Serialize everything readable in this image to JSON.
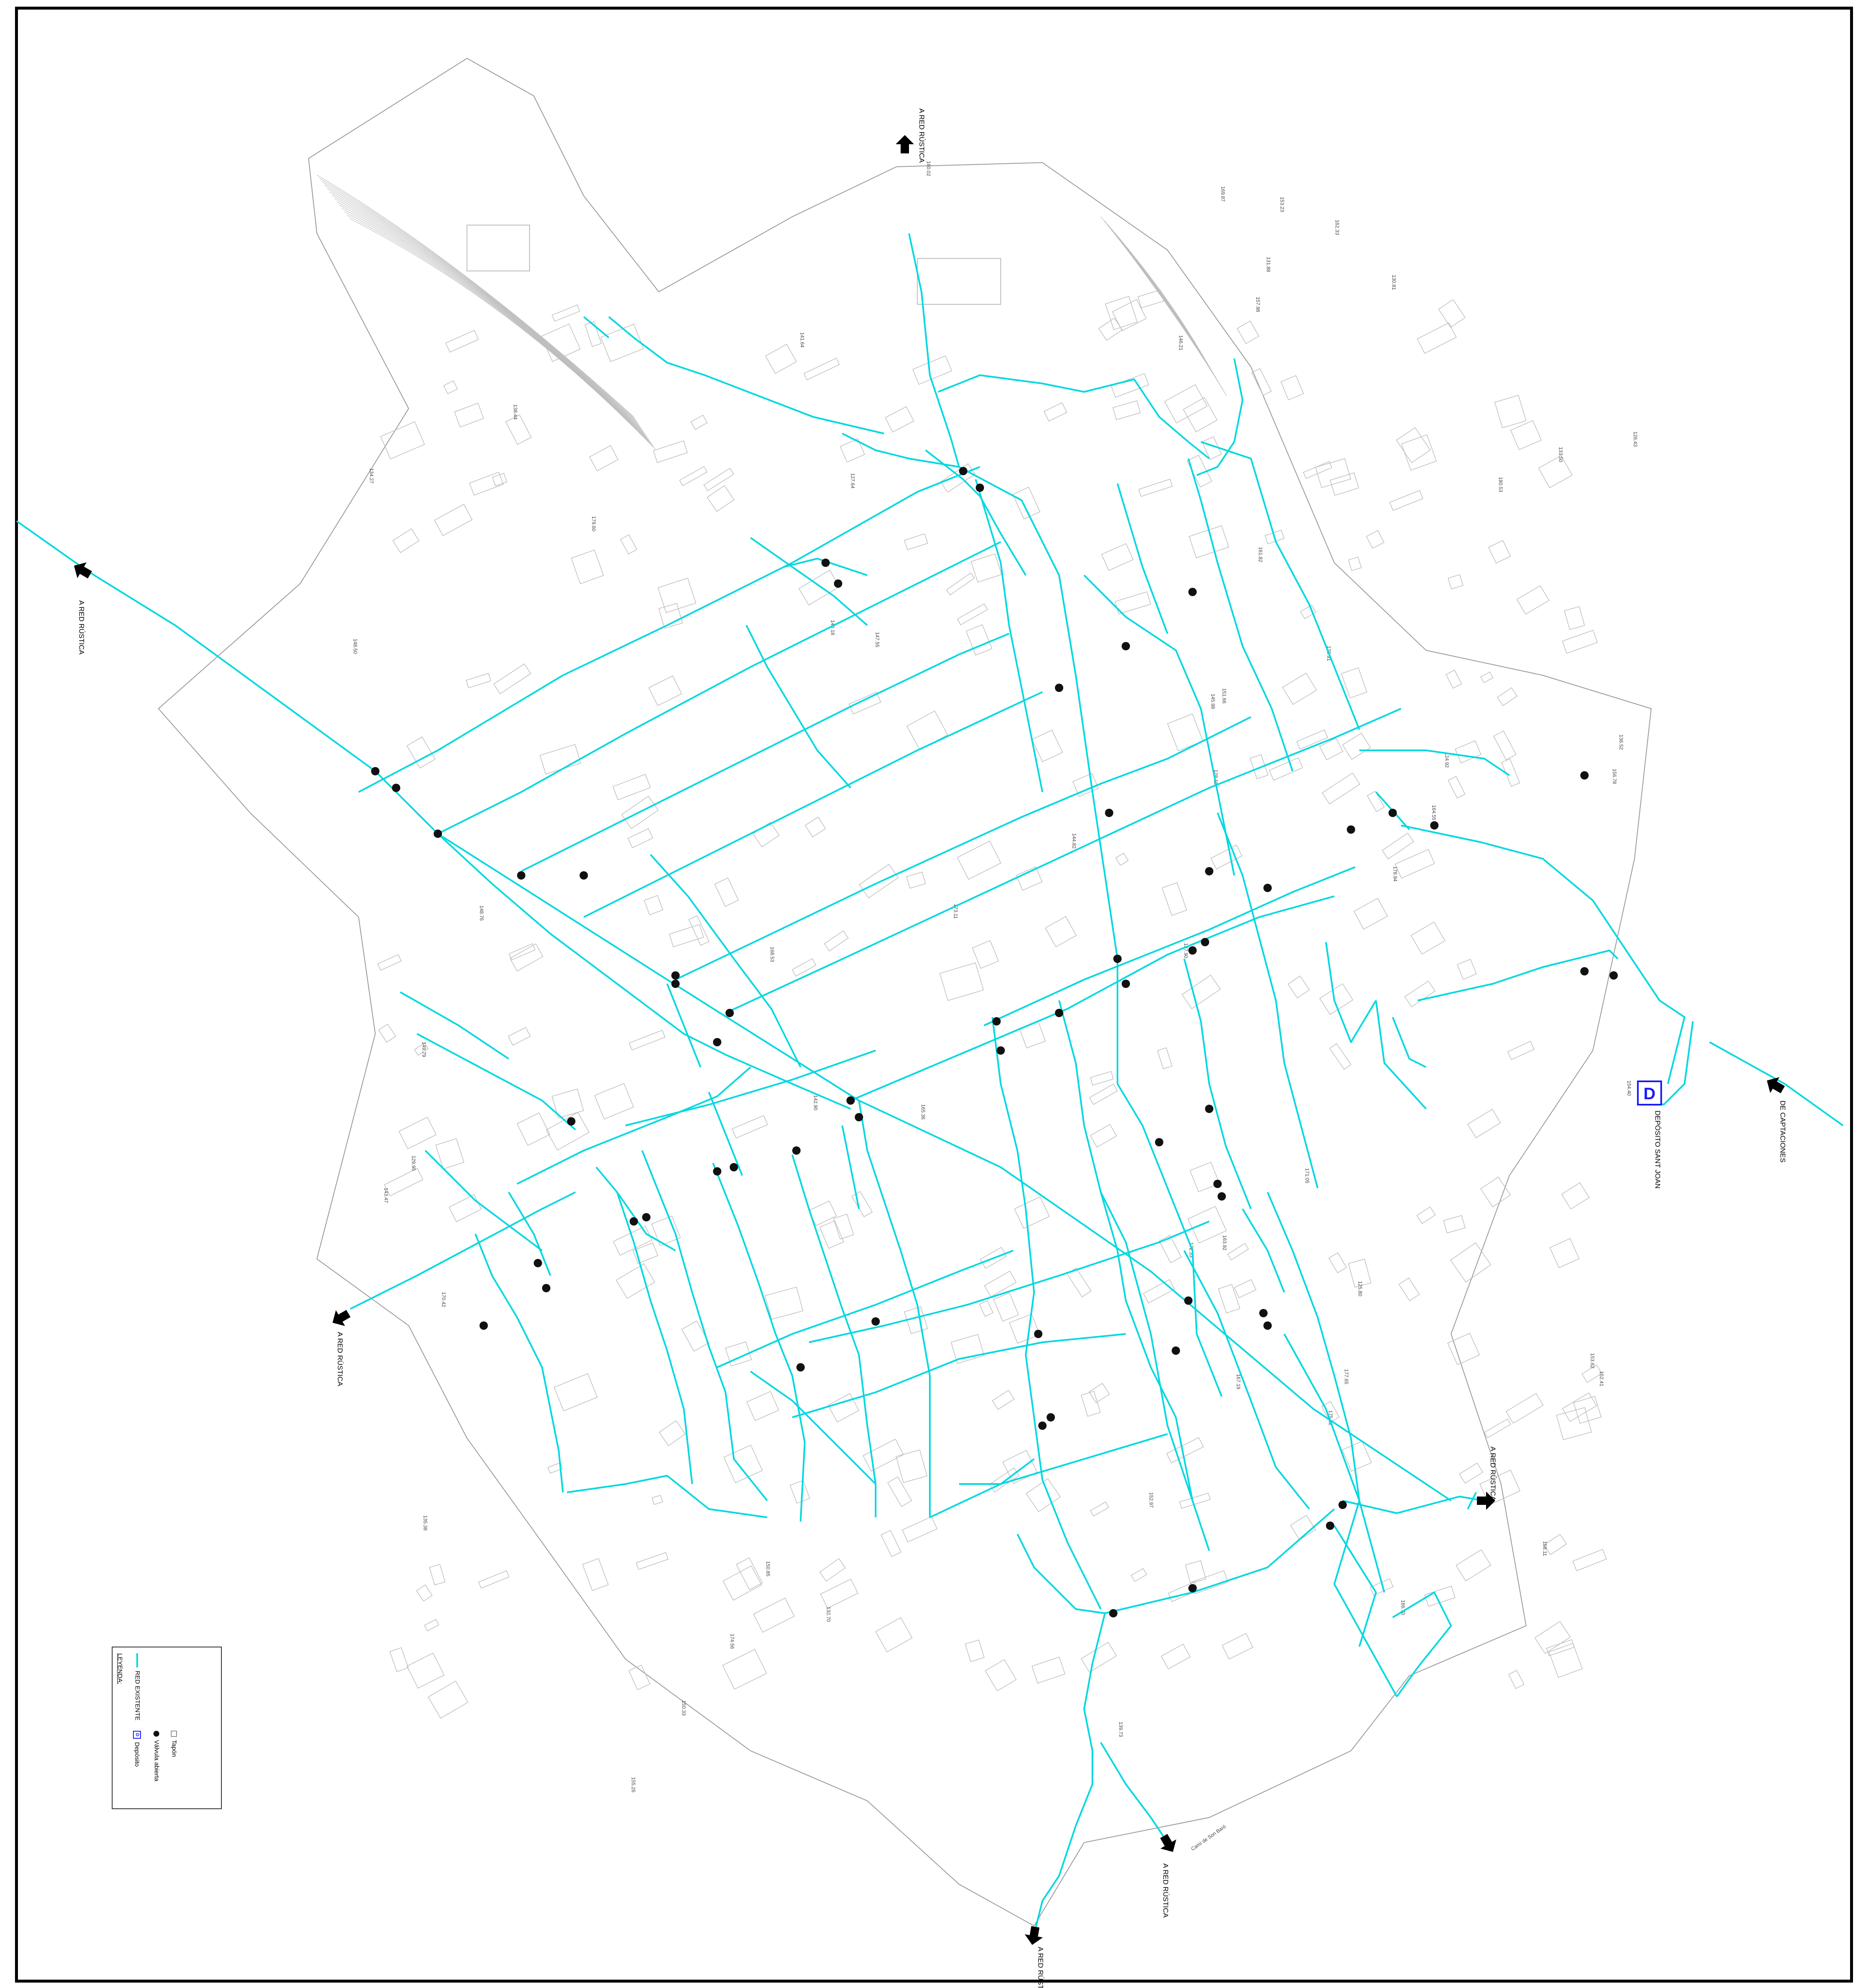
{
  "map": {
    "colors": {
      "network": "#00d8e0",
      "streets": "#9a9a9a",
      "buildings": "#bdbdbd",
      "valve": "#111111",
      "depot": "#1a1aff",
      "frame": "#000000"
    },
    "labels": {
      "red_rustica": "A RED RÚSTICA",
      "captaciones": "DE CAPTACIONES",
      "deposito": "DEPÓSITO SANT JOAN",
      "depot_glyph": "D",
      "cami": "Camí de Son Baró"
    },
    "elevations": [
      "158.11",
      "157.98",
      "156.78",
      "155.26",
      "153.62",
      "152.41",
      "151.66",
      "150.33",
      "149.79",
      "148.76",
      "147.55",
      "146.21",
      "145.98",
      "144.82",
      "143.47",
      "142.90",
      "141.64",
      "140.18",
      "139.73",
      "138.44",
      "137.90",
      "136.52",
      "135.38",
      "134.27",
      "133.50",
      "132.70",
      "131.88",
      "130.81",
      "129.95",
      "128.12",
      "127.64",
      "126.43",
      "125.80",
      "124.92",
      "160.02",
      "161.82",
      "162.33",
      "163.92",
      "164.55",
      "165.36",
      "166.70",
      "167.19",
      "168.53",
      "169.87",
      "170.42",
      "171.05",
      "172.33",
      "173.11",
      "174.56",
      "175.32",
      "176.91",
      "177.65",
      "178.94",
      "179.60",
      "180.53",
      "154.40",
      "153.23",
      "152.97",
      "150.85",
      "148.50"
    ],
    "arrows": [
      {
        "label": "A RED RÚSTICA",
        "dir": "north"
      },
      {
        "label": "A RED RÚSTICA",
        "dir": "west"
      },
      {
        "label": "A RED RÚSTICA",
        "dir": "southwest"
      },
      {
        "label": "A RED RÚSTICA",
        "dir": "east"
      },
      {
        "label": "A RED RÚSTICA",
        "dir": "south"
      },
      {
        "label": "A RED RÚSTICA",
        "dir": "south"
      },
      {
        "label": "DE CAPTACIONES",
        "dir": "northwest"
      }
    ]
  },
  "legend": {
    "title": "LEYENDA:",
    "items": [
      {
        "label": "RED EXISTENTE",
        "icon": "line"
      },
      {
        "label": "Depósito",
        "icon": "depot"
      },
      {
        "label": "Válvula abierta",
        "icon": "valve"
      },
      {
        "label": "Tapón",
        "icon": "cap"
      }
    ]
  }
}
